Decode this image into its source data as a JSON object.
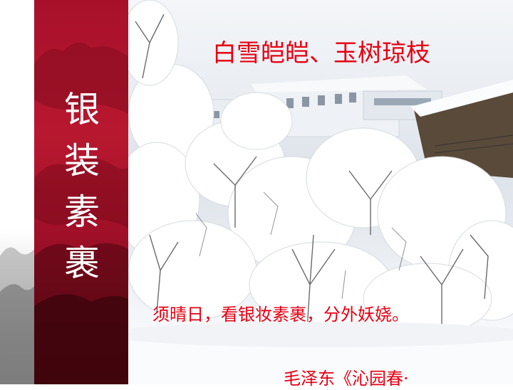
{
  "slide": {
    "side_title": [
      "银",
      "装",
      "素",
      "裹"
    ],
    "heading": "白雪皑皑、玉树琼枝",
    "poem_line": "须晴日，看银妆素裹，分外妖娆。",
    "attribution": "毛泽东《沁园春·"
  },
  "colors": {
    "band_red": "#a8102a",
    "text_red": "#e60012"
  }
}
